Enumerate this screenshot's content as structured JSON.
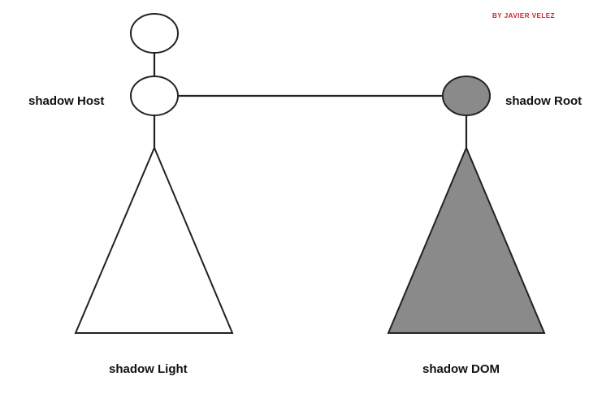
{
  "credit": "BY JAVIER VELEZ",
  "labels": {
    "shadow_host": "shadow Host",
    "shadow_root": "shadow Root",
    "shadow_light": "shadow Light",
    "shadow_dom": "shadow DOM"
  },
  "colors": {
    "stroke": "#222222",
    "light_fill": "#ffffff",
    "shadow_fill": "#8a8a8a",
    "credit": "#d42020"
  }
}
